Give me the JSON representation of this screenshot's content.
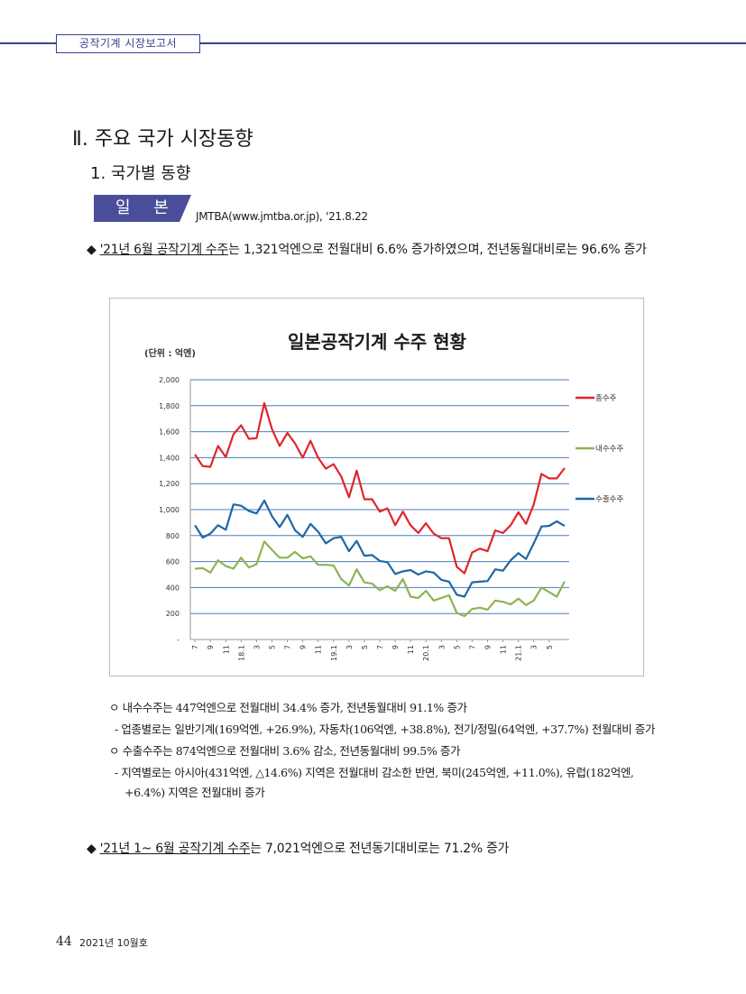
{
  "header": {
    "title": "공작기계 시장보고서"
  },
  "section": {
    "title": "Ⅱ. 주요 국가 시장동향",
    "subtitle": "1. 국가별 동향"
  },
  "country": {
    "label": "일 본",
    "source": "JMTBA(www.jmtba.or.jp),  '21.8.22"
  },
  "bullet1": {
    "marker": "◆",
    "underlined": "'21년 6월 공작기계 수주",
    "rest": "는 1,321억엔으로 전월대비 6.6% 증가하였으며, 전년동월대비로는 96.6% 증가"
  },
  "notes": [
    "ㅇ 내수수주는 447억엔으로 전월대비 34.4% 증가, 전년동월대비 91.1% 증가",
    "- 업종별로는 일반기계(169억엔, +26.9%), 자동차(106억엔, +38.8%), 전기/정밀(64억엔, +37.7%) 전월대비 증가",
    "ㅇ 수출수주는 874억엔으로 전월대비 3.6% 감소, 전년동월대비 99.5% 증가",
    "- 지역별로는 아시아(431억엔, △14.6%) 지역은 전월대비 감소한 반면, 북미(245억엔, +11.0%), 유럽(182억엔,",
    "+6.4%) 지역은 전월대비 증가"
  ],
  "bullet2": {
    "marker": "◆",
    "underlined": "'21년 1~ 6월 공작기계 수주",
    "rest": "는 7,021억엔으로 전년동기대비로는 71.2% 증가"
  },
  "footer": {
    "page": "44",
    "issue": "2021년 10월호"
  },
  "colors": {
    "accent": "#3a3f8f",
    "total": "#e0262b",
    "domestic": "#8db453",
    "export": "#1f67a6",
    "grid": "#4a7ebb"
  },
  "chart_data": {
    "type": "line",
    "title": "일본공작기계 수주 현황",
    "unit_label": "(단위 : 억엔)",
    "ylim": [
      0,
      2000
    ],
    "yticks": [
      "-",
      "200",
      "400",
      "600",
      "800",
      "1,000",
      "1,200",
      "1,400",
      "1,600",
      "1,800",
      "2,000"
    ],
    "xtick_labels": [
      "7",
      "9",
      "11",
      "18.1",
      "3",
      "5",
      "7",
      "9",
      "11",
      "19.1",
      "3",
      "5",
      "7",
      "9",
      "11",
      "20.1",
      "3",
      "5",
      "7",
      "9",
      "11",
      "21.1",
      "3",
      "5"
    ],
    "legend_position": "right",
    "series": [
      {
        "name": "총수주",
        "values": [
          1425,
          1335,
          1330,
          1490,
          1405,
          1580,
          1650,
          1545,
          1550,
          1820,
          1620,
          1490,
          1590,
          1510,
          1400,
          1530,
          1400,
          1315,
          1350,
          1255,
          1095,
          1300,
          1080,
          1080,
          985,
          1010,
          880,
          985,
          880,
          820,
          895,
          815,
          780,
          780,
          560,
          510,
          670,
          700,
          680,
          840,
          820,
          880,
          980,
          890,
          1040,
          1275,
          1240,
          1240,
          1320
        ]
      },
      {
        "name": "내수수주",
        "values": [
          545,
          550,
          515,
          610,
          565,
          545,
          630,
          555,
          580,
          755,
          690,
          630,
          630,
          675,
          625,
          640,
          575,
          575,
          570,
          465,
          415,
          540,
          440,
          430,
          380,
          410,
          375,
          465,
          330,
          320,
          375,
          300,
          320,
          340,
          205,
          180,
          235,
          245,
          230,
          300,
          290,
          270,
          315,
          265,
          300,
          400,
          365,
          330,
          447
        ]
      },
      {
        "name": "수출수주",
        "values": [
          880,
          785,
          815,
          880,
          845,
          1040,
          1030,
          990,
          970,
          1070,
          950,
          865,
          960,
          840,
          790,
          890,
          830,
          740,
          780,
          790,
          680,
          760,
          645,
          650,
          605,
          595,
          505,
          525,
          535,
          500,
          525,
          515,
          460,
          445,
          345,
          330,
          440,
          445,
          450,
          540,
          530,
          610,
          665,
          620,
          740,
          870,
          875,
          910,
          874
        ]
      }
    ]
  }
}
